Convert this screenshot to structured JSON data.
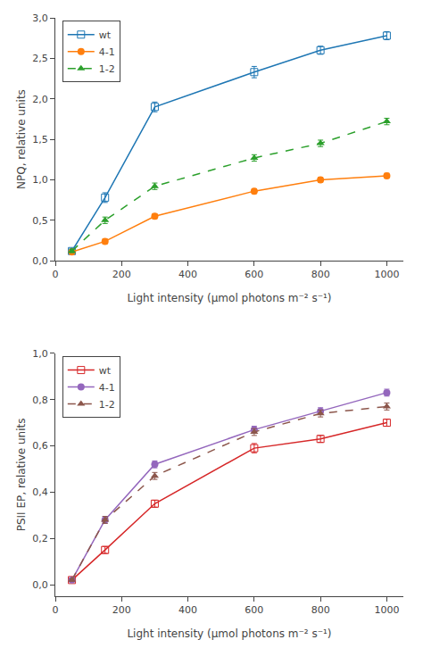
{
  "chart_data": [
    {
      "type": "line",
      "x_label": "Light intensity (μmol photons m⁻² s⁻¹)",
      "y_label": "NPQ, relative units",
      "x": [
        50,
        150,
        300,
        600,
        800,
        1000
      ],
      "series": [
        {
          "name": "wt",
          "marker": "square-open",
          "line_style": "solid",
          "values": [
            0.12,
            0.78,
            1.9,
            2.33,
            2.6,
            2.78
          ],
          "errors": [
            0.03,
            0.06,
            0.06,
            0.07,
            0.05,
            0.05
          ]
        },
        {
          "name": "4-1",
          "marker": "circle",
          "line_style": "solid",
          "values": [
            0.11,
            0.24,
            0.55,
            0.86,
            1.0,
            1.05
          ],
          "errors": [
            0.02,
            0.03,
            0.03,
            0.03,
            0.03,
            0.03
          ]
        },
        {
          "name": "1-2",
          "marker": "triangle-up",
          "line_style": "dash",
          "values": [
            0.12,
            0.5,
            0.92,
            1.27,
            1.45,
            1.72
          ],
          "errors": [
            0.02,
            0.04,
            0.04,
            0.04,
            0.04,
            0.04
          ]
        }
      ],
      "xlim": [
        0,
        1050
      ],
      "xticks": [
        0,
        200,
        400,
        600,
        800,
        1000
      ],
      "ylim": [
        0.0,
        3.0
      ],
      "yticks": [
        {
          "value": 0.0,
          "label": "0,0"
        },
        {
          "value": 0.5,
          "label": "0,5"
        },
        {
          "value": 1.0,
          "label": "1,0"
        },
        {
          "value": 1.5,
          "label": "1,5"
        },
        {
          "value": 2.0,
          "label": "2,0"
        },
        {
          "value": 2.5,
          "label": "2,5"
        },
        {
          "value": 3.0,
          "label": "3,0"
        }
      ],
      "grid": false,
      "legend": "upper left"
    },
    {
      "type": "line",
      "x_label": "Light intensity (μmol photons m⁻² s⁻¹)",
      "y_label": "PSII EP, relative units",
      "x": [
        50,
        150,
        300,
        600,
        800,
        1000
      ],
      "series": [
        {
          "name": "wt",
          "marker": "square-open",
          "line_style": "solid",
          "values": [
            0.02,
            0.15,
            0.35,
            0.59,
            0.63,
            0.7
          ],
          "errors": [
            0.005,
            0.015,
            0.015,
            0.02,
            0.015,
            0.015
          ]
        },
        {
          "name": "4-1",
          "marker": "circle",
          "line_style": "solid",
          "values": [
            0.02,
            0.28,
            0.52,
            0.67,
            0.75,
            0.83
          ],
          "errors": [
            0.005,
            0.015,
            0.015,
            0.015,
            0.015,
            0.015
          ]
        },
        {
          "name": "1-2",
          "marker": "triangle-up",
          "line_style": "dash",
          "values": [
            0.02,
            0.28,
            0.47,
            0.66,
            0.74,
            0.77
          ],
          "errors": [
            0.005,
            0.015,
            0.015,
            0.015,
            0.015,
            0.015
          ]
        }
      ],
      "xlim": [
        0,
        1050
      ],
      "xticks": [
        0,
        200,
        400,
        600,
        800,
        1000
      ],
      "ylim": [
        -0.05,
        1.0
      ],
      "yticks": [
        {
          "value": 0.0,
          "label": "0,0"
        },
        {
          "value": 0.2,
          "label": "0,2"
        },
        {
          "value": 0.4,
          "label": "0,4"
        },
        {
          "value": 0.6,
          "label": "0,6"
        },
        {
          "value": 0.8,
          "label": "0,8"
        },
        {
          "value": 1.0,
          "label": "1,0"
        }
      ],
      "grid": false,
      "legend": "upper left"
    }
  ]
}
